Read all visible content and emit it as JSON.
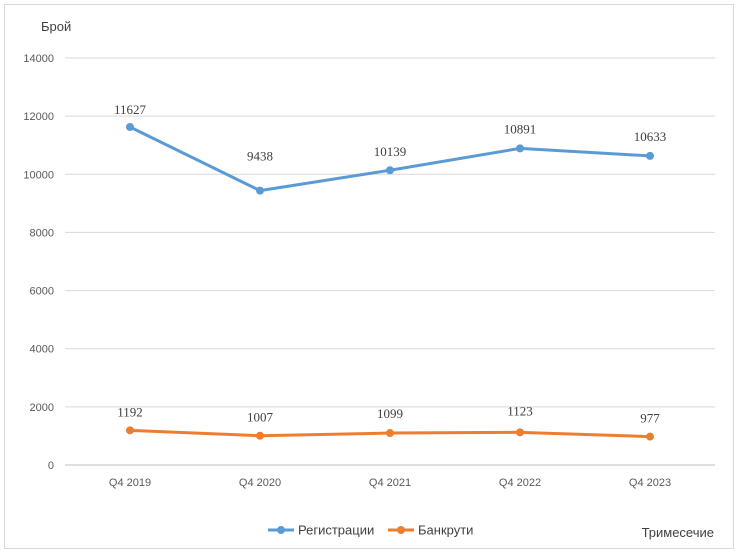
{
  "chart_data": {
    "type": "line",
    "title": "",
    "ylabel": "Брой",
    "xlabel": "Тримесечие",
    "ylim": [
      0,
      14000
    ],
    "yticks": [
      0,
      2000,
      4000,
      6000,
      8000,
      10000,
      12000,
      14000
    ],
    "categories": [
      "Q4 2019",
      "Q4 2020",
      "Q4 2021",
      "Q4 2022",
      "Q4 2023"
    ],
    "grid": true,
    "legend_position": "bottom",
    "series": [
      {
        "name": "Регистрации",
        "color": "#5b9bd5",
        "values": [
          11627,
          9438,
          10139,
          10891,
          10633
        ]
      },
      {
        "name": "Банкрути",
        "color": "#ed7d31",
        "values": [
          1192,
          1007,
          1099,
          1123,
          977
        ]
      }
    ]
  }
}
